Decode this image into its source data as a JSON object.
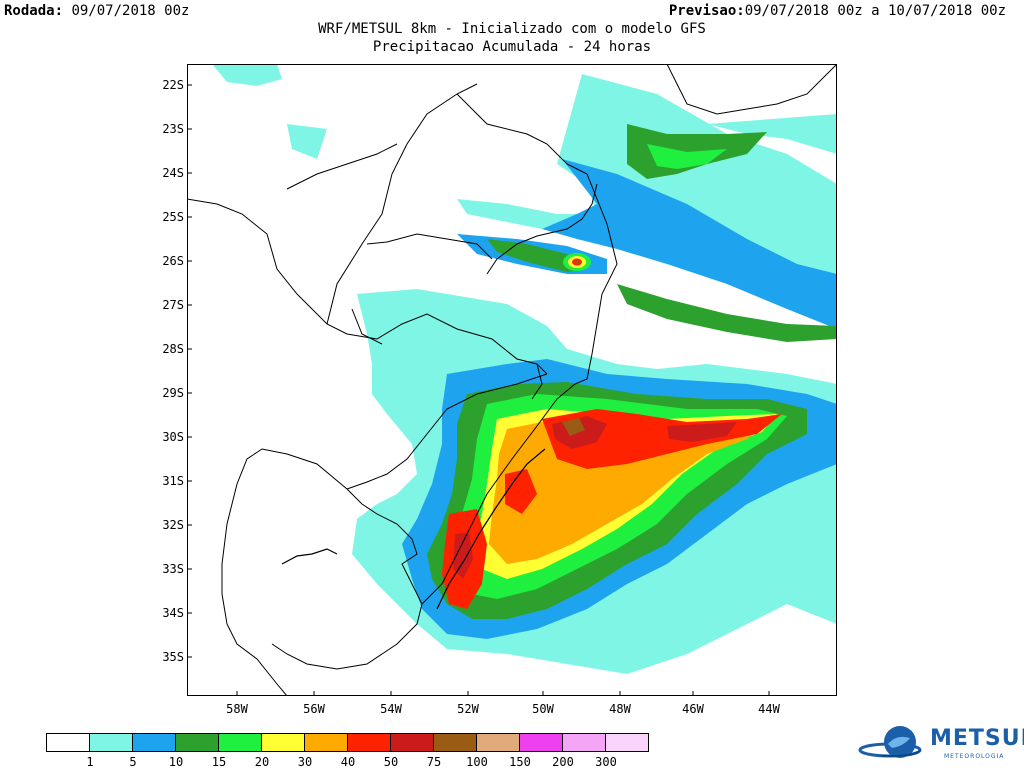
{
  "header": {
    "run_label": "Rodada:",
    "run_value": "09/07/2018 00z",
    "forecast_label": "Previsao:",
    "forecast_value": "09/07/2018 00z a 10/07/2018 00z",
    "title": "WRF/METSUL 8km - Inicializado com o modelo GFS",
    "subtitle": "Precipitacao Acumulada - 24 horas"
  },
  "map": {
    "lat_labels": [
      "22S",
      "23S",
      "24S",
      "25S",
      "26S",
      "27S",
      "28S",
      "29S",
      "30S",
      "31S",
      "32S",
      "33S",
      "34S",
      "35S"
    ],
    "lon_labels": [
      "58W",
      "56W",
      "54W",
      "52W",
      "50W",
      "48W",
      "46W",
      "44W"
    ],
    "lat_range": [
      -35.7,
      -21.4
    ],
    "lon_range": [
      -59.2,
      -42.9
    ]
  },
  "colorbar": {
    "levels": [
      "1",
      "5",
      "10",
      "15",
      "20",
      "30",
      "40",
      "50",
      "75",
      "100",
      "150",
      "200",
      "300"
    ],
    "colors": [
      "#ffffff",
      "#7ff5e6",
      "#1ea4ef",
      "#2da12d",
      "#1ff040",
      "#ffff33",
      "#ffaa00",
      "#ff2200",
      "#cc1b1b",
      "#9a5b15",
      "#e0aa7a",
      "#ee40ee",
      "#f5a5f5",
      "#fbd4fb"
    ]
  },
  "logo": {
    "name": "METSUL",
    "tagline": "METEOROLOGIA"
  }
}
